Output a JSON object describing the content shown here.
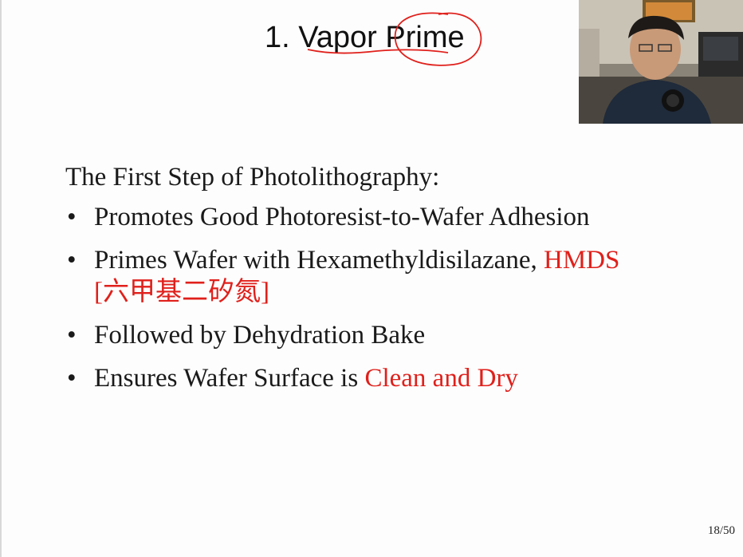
{
  "slide": {
    "title": "1. Vapor Prime",
    "intro": "The First Step of Photolithography:",
    "bullets": [
      {
        "text": "Promotes Good Photoresist-to-Wafer Adhesion",
        "highlight": ""
      },
      {
        "text": "Primes Wafer with Hexamethyldisilazane, ",
        "highlight": "HMDS",
        "continuation": "[六甲基二矽氮]"
      },
      {
        "text": "Followed by Dehydration Bake",
        "highlight": ""
      },
      {
        "text": "Ensures Wafer Surface is ",
        "highlight": "Clean and Dry"
      }
    ],
    "bullet_glyph": "•",
    "page_number": "18/50"
  },
  "colors": {
    "text": "#1a1a1a",
    "highlight": "#e0201b",
    "annotation": "#e0201b"
  },
  "webcam": {
    "icon": "presenter-video-icon"
  }
}
